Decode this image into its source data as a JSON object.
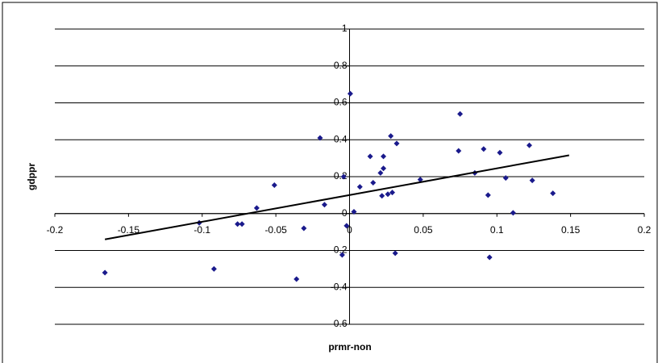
{
  "chart_data": {
    "type": "scatter",
    "x_label": "prmr-non",
    "y_label": "gdppr",
    "color": "#1a1a8c",
    "grid": true,
    "xlim": [
      -0.2,
      0.2
    ],
    "xticks": [
      -0.2,
      -0.15,
      -0.1,
      -0.05,
      0,
      0.05,
      0.1,
      0.15,
      0.2
    ],
    "ylim": [
      -0.6,
      1
    ],
    "yticks": [
      -0.6,
      -0.4,
      -0.2,
      0,
      0.2,
      0.4,
      0.6,
      0.8,
      1
    ],
    "x": [
      -0.166,
      -0.102,
      -0.092,
      -0.076,
      -0.073,
      -0.063,
      -0.051,
      -0.031,
      -0.036,
      -0.02,
      -0.017,
      -0.005,
      -0.004,
      -0.002,
      0.0005,
      0.003,
      0.007,
      0.014,
      0.016,
      0.021,
      0.022,
      0.023,
      0.023,
      0.026,
      0.028,
      0.029,
      0.032,
      0.031,
      0.048,
      0.074,
      0.075,
      0.085,
      0.091,
      0.094,
      0.095,
      0.102,
      0.106,
      0.111,
      0.122,
      0.124,
      0.138
    ],
    "values": [
      -0.32,
      -0.05,
      -0.3,
      -0.057,
      -0.057,
      0.03,
      0.154,
      -0.08,
      -0.355,
      0.41,
      0.048,
      -0.224,
      0.2,
      -0.066,
      0.65,
      0.01,
      0.145,
      0.31,
      0.167,
      0.22,
      0.096,
      0.31,
      0.245,
      0.105,
      0.42,
      0.114,
      0.38,
      -0.215,
      0.184,
      0.34,
      0.54,
      0.22,
      0.35,
      0.1,
      -0.237,
      0.33,
      0.193,
      0.004,
      0.37,
      0.18,
      0.11
    ],
    "trendline": {
      "x": [
        -0.166,
        0.149
      ],
      "values": [
        -0.14,
        0.316
      ],
      "color": "#000000"
    }
  }
}
